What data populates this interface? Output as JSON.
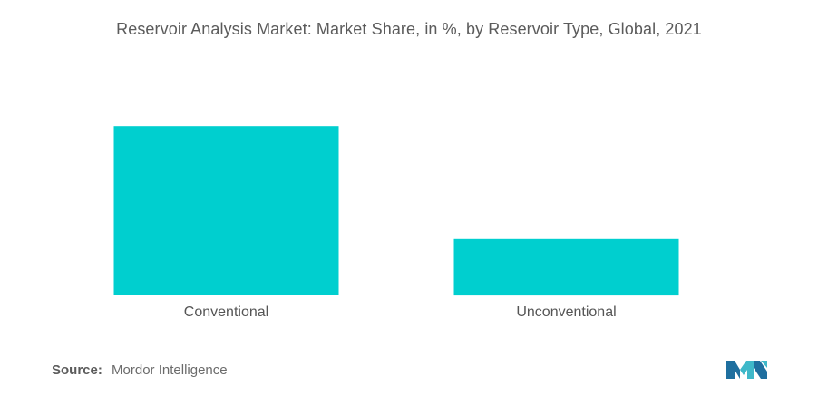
{
  "title": "Reservoir Analysis Market: Market Share, in %, by Reservoir Type, Global, 2021",
  "source": {
    "label": "Source:",
    "text": "Mordor Intelligence"
  },
  "logo": {
    "icon": "mordor-intelligence-logo-icon",
    "colors": [
      "#1f6f9f",
      "#3fb8c9"
    ]
  },
  "chart_data": {
    "type": "bar",
    "categories": [
      "Conventional",
      "Unconventional"
    ],
    "values": [
      75,
      25
    ],
    "ylim": [
      0,
      100
    ],
    "grid": false,
    "legend": "none",
    "bar_color": "#00CFCF",
    "xlabel": "",
    "ylabel": ""
  }
}
